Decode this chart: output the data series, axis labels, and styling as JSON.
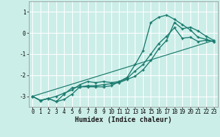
{
  "xlabel": "Humidex (Indice chaleur)",
  "ylabel": "",
  "bg_color": "#cceee8",
  "grid_color": "#ffffff",
  "line_color": "#1a7a6e",
  "xlim": [
    -0.5,
    23.5
  ],
  "ylim": [
    -3.5,
    1.5
  ],
  "series": [
    {
      "x": [
        0,
        1,
        2,
        3,
        4,
        5,
        6,
        7,
        8,
        9,
        10,
        11,
        12,
        13,
        14,
        15,
        16,
        17,
        18,
        19,
        20,
        21,
        22,
        23
      ],
      "y": [
        -3.0,
        -3.2,
        -3.1,
        -3.0,
        -2.85,
        -2.7,
        -2.45,
        -2.3,
        -2.35,
        -2.3,
        -2.35,
        -2.3,
        -2.1,
        -1.5,
        -0.85,
        0.5,
        0.75,
        0.85,
        0.65,
        0.4,
        0.15,
        -0.2,
        -0.3,
        -0.4
      ]
    },
    {
      "x": [
        0,
        1,
        2,
        3,
        4,
        5,
        6,
        7,
        8,
        9,
        10,
        11,
        12,
        13,
        14,
        15,
        16,
        17,
        18,
        19,
        20,
        21,
        22,
        23
      ],
      "y": [
        -3.0,
        -3.2,
        -3.1,
        -3.25,
        -2.9,
        -2.6,
        -2.55,
        -2.5,
        -2.5,
        -2.45,
        -2.4,
        -2.35,
        -2.2,
        -2.05,
        -1.75,
        -1.3,
        -0.75,
        -0.35,
        0.5,
        0.2,
        0.28,
        0.1,
        -0.15,
        -0.35
      ]
    },
    {
      "x": [
        0,
        1,
        2,
        3,
        4,
        5,
        6,
        7,
        8,
        9,
        10,
        11,
        12,
        13,
        14,
        15,
        16,
        17,
        18,
        19,
        20,
        21,
        22,
        23
      ],
      "y": [
        -3.0,
        -3.2,
        -3.1,
        -3.25,
        -3.15,
        -2.9,
        -2.55,
        -2.55,
        -2.55,
        -2.55,
        -2.5,
        -2.3,
        -2.15,
        -1.8,
        -1.5,
        -1.0,
        -0.5,
        -0.15,
        0.25,
        -0.25,
        -0.2,
        -0.4,
        -0.35,
        -0.4
      ]
    },
    {
      "x": [
        0,
        23
      ],
      "y": [
        -3.0,
        -0.35
      ]
    }
  ],
  "xticks": [
    0,
    1,
    2,
    3,
    4,
    5,
    6,
    7,
    8,
    9,
    10,
    11,
    12,
    13,
    14,
    15,
    16,
    17,
    18,
    19,
    20,
    21,
    22,
    23
  ],
  "yticks": [
    -3,
    -2,
    -1,
    0,
    1
  ],
  "tick_fontsize": 5.5,
  "label_fontsize": 7
}
